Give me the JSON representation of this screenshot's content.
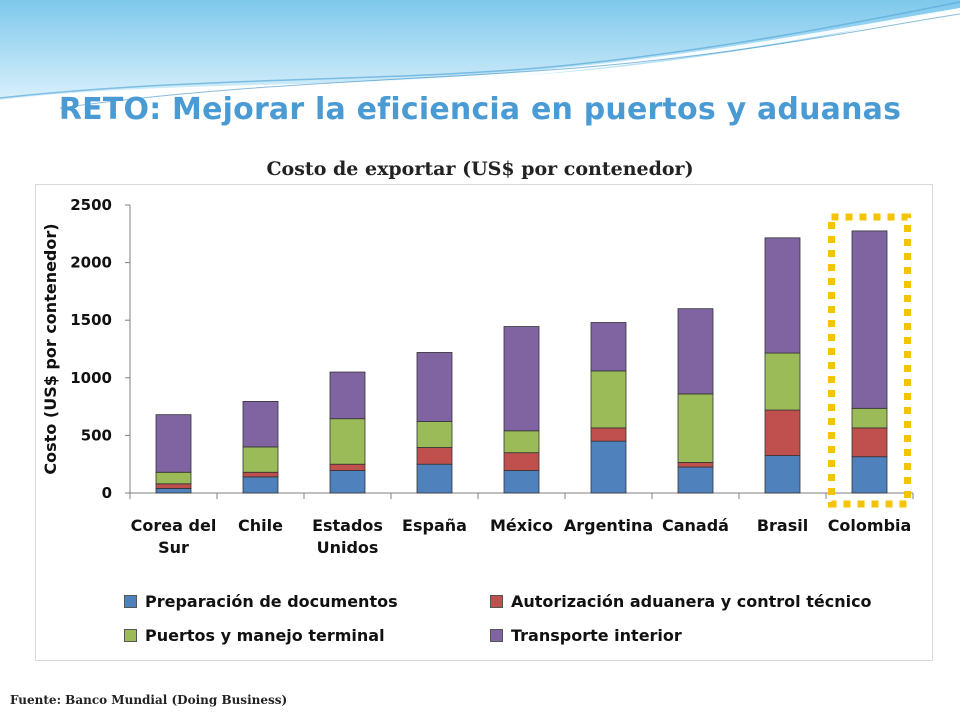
{
  "slide": {
    "title": "RETO: Mejorar la eficiencia en puertos y aduanas",
    "source": "Fuente: Banco Mundial (Doing Business)"
  },
  "colors": {
    "title": "#4a9bd4",
    "highlight_box": "#f5c400"
  },
  "chart_data": {
    "type": "bar",
    "stacked": true,
    "title": "Costo de exportar (US$ por contenedor)",
    "ylabel": "Costo (US$ por contenedor)",
    "xlabel": "",
    "ylim": [
      0,
      2500
    ],
    "yticks": [
      0,
      500,
      1000,
      1500,
      2000,
      2500
    ],
    "categories": [
      [
        "Corea del",
        "Sur"
      ],
      [
        "Chile"
      ],
      [
        "Estados",
        "Unidos"
      ],
      [
        "España"
      ],
      [
        "México"
      ],
      [
        "Argentina"
      ],
      [
        "Canadá"
      ],
      [
        "Brasil"
      ],
      [
        "Colombia"
      ]
    ],
    "series": [
      {
        "name": "Preparación de documentos",
        "color": "#4f81bd",
        "values": [
          40,
          140,
          195,
          250,
          195,
          450,
          225,
          325,
          315
        ]
      },
      {
        "name": "Autorización aduanera y control técnico",
        "color": "#c0504d",
        "values": [
          40,
          40,
          55,
          145,
          155,
          115,
          40,
          395,
          250
        ]
      },
      {
        "name": "Puertos y manejo terminal",
        "color": "#9bbb59",
        "values": [
          100,
          220,
          395,
          225,
          190,
          495,
          595,
          495,
          170
        ]
      },
      {
        "name": "Transporte interior",
        "color": "#8064a2",
        "values": [
          500,
          395,
          405,
          600,
          905,
          420,
          740,
          1000,
          1540
        ]
      }
    ],
    "highlight": "Colombia",
    "legend_position": "bottom",
    "grid": false
  }
}
